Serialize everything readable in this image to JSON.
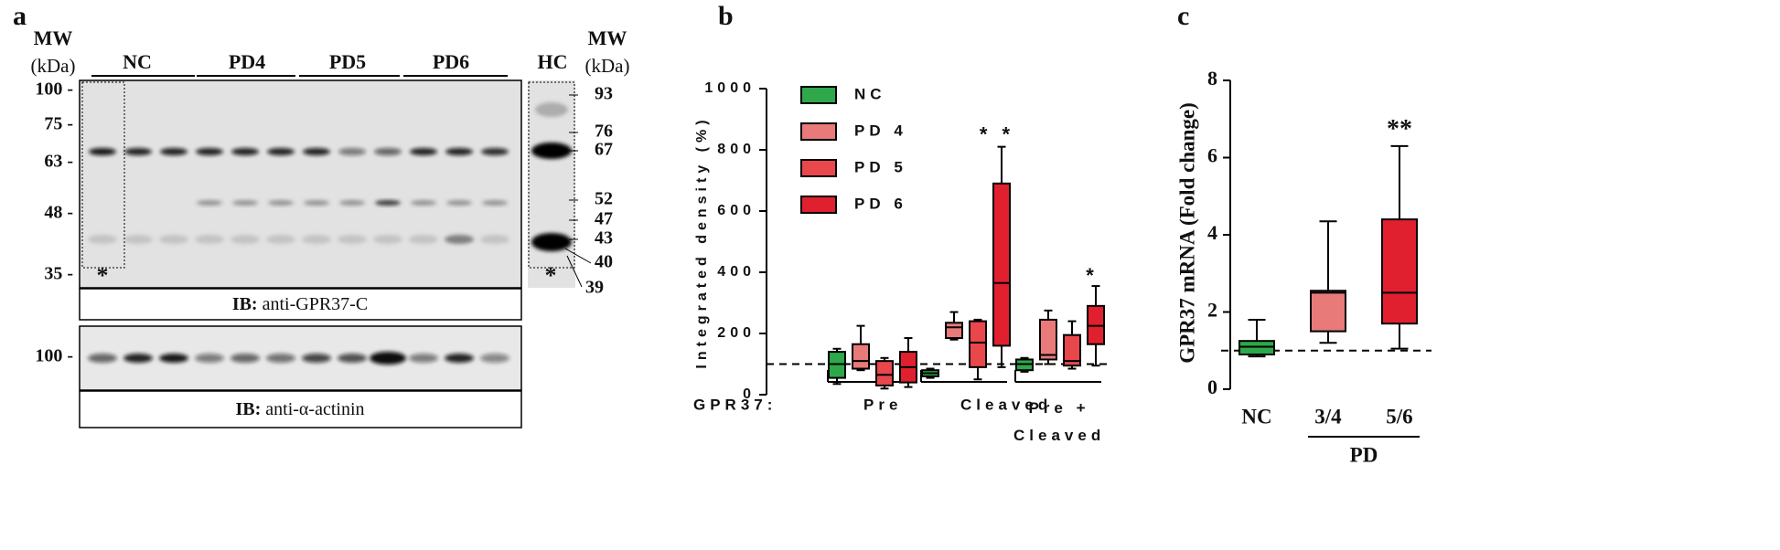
{
  "panels": [
    "a",
    "b",
    "c"
  ],
  "blot": {
    "mw_title_left": "MW",
    "mw_unit_left": "(kDa)",
    "mw_title_right": "MW",
    "mw_unit_right": "(kDa)",
    "mw_left": [
      "100 -",
      "75 -",
      "63 -",
      "48 -",
      "35 -"
    ],
    "mw_right": [
      "93",
      "76",
      "67",
      "52",
      "47",
      "43",
      "40",
      "39"
    ],
    "lanes": [
      "NC",
      "PD4",
      "PD5",
      "PD6",
      "HC"
    ],
    "asterisks": [
      "*",
      "*"
    ],
    "upper_ib": {
      "prefix": "IB:",
      "antibody": "anti-GPR37-C"
    },
    "lower_mw": [
      "100 -"
    ],
    "lower_ib": {
      "prefix": "IB:",
      "antibody": "anti-α-actinin"
    }
  },
  "chart_data": [
    {
      "type": "box",
      "y_label": "Integrated density (%)",
      "x_label": "GPR37:",
      "categories": [
        "Pre",
        "Cleaved",
        "Pre + Cleaved"
      ],
      "ylim": [
        0,
        1000
      ],
      "yticks": [
        0,
        200,
        400,
        600,
        800,
        1000
      ],
      "reference_line": 100,
      "annotations": [
        "* *",
        "*"
      ],
      "series": [
        {
          "name": "NC",
          "color": "#2ea84a",
          "values": [
            {
              "min": 35,
              "q1": 55,
              "median": 100,
              "q3": 140,
              "max": 150
            },
            {
              "min": 55,
              "q1": 60,
              "median": 70,
              "q3": 80,
              "max": 85
            },
            {
              "min": 75,
              "q1": 80,
              "median": 100,
              "q3": 115,
              "max": 120
            }
          ]
        },
        {
          "name": "PD 4",
          "color": "#e87a7a",
          "values": [
            {
              "min": 80,
              "q1": 85,
              "median": 110,
              "q3": 165,
              "max": 225
            },
            {
              "min": 180,
              "q1": 185,
              "median": 220,
              "q3": 235,
              "max": 270
            },
            {
              "min": 100,
              "q1": 115,
              "median": 130,
              "q3": 245,
              "max": 275
            }
          ]
        },
        {
          "name": "PD 5",
          "color": "#e8474c",
          "values": [
            {
              "min": 20,
              "q1": 30,
              "median": 65,
              "q3": 110,
              "max": 120
            },
            {
              "min": 50,
              "q1": 90,
              "median": 170,
              "q3": 240,
              "max": 245
            },
            {
              "min": 85,
              "q1": 95,
              "median": 110,
              "q3": 195,
              "max": 240
            }
          ]
        },
        {
          "name": "PD 6",
          "color": "#e0202e",
          "values": [
            {
              "min": 25,
              "q1": 40,
              "median": 90,
              "q3": 140,
              "max": 185
            },
            {
              "min": 90,
              "q1": 160,
              "median": 365,
              "q3": 690,
              "max": 810
            },
            {
              "min": 95,
              "q1": 165,
              "median": 225,
              "q3": 290,
              "max": 355
            }
          ]
        }
      ]
    },
    {
      "type": "box",
      "y_label": "GPR37 mRNA (Fold change)",
      "group_label": "PD",
      "categories": [
        "NC",
        "3/4",
        "5/6"
      ],
      "colors": [
        "#2ea84a",
        "#e87a7a",
        "#e0202e"
      ],
      "ylim": [
        0,
        8
      ],
      "yticks": [
        0,
        2,
        4,
        6,
        8
      ],
      "reference_line": 1,
      "annotations": [
        "**"
      ],
      "values": [
        {
          "min": 0.85,
          "q1": 0.9,
          "median": 1.1,
          "q3": 1.25,
          "max": 1.8
        },
        {
          "min": 1.2,
          "q1": 1.5,
          "median": 2.5,
          "q3": 2.55,
          "max": 4.35
        },
        {
          "min": 1.05,
          "q1": 1.7,
          "median": 2.5,
          "q3": 4.4,
          "max": 6.3
        }
      ]
    }
  ]
}
